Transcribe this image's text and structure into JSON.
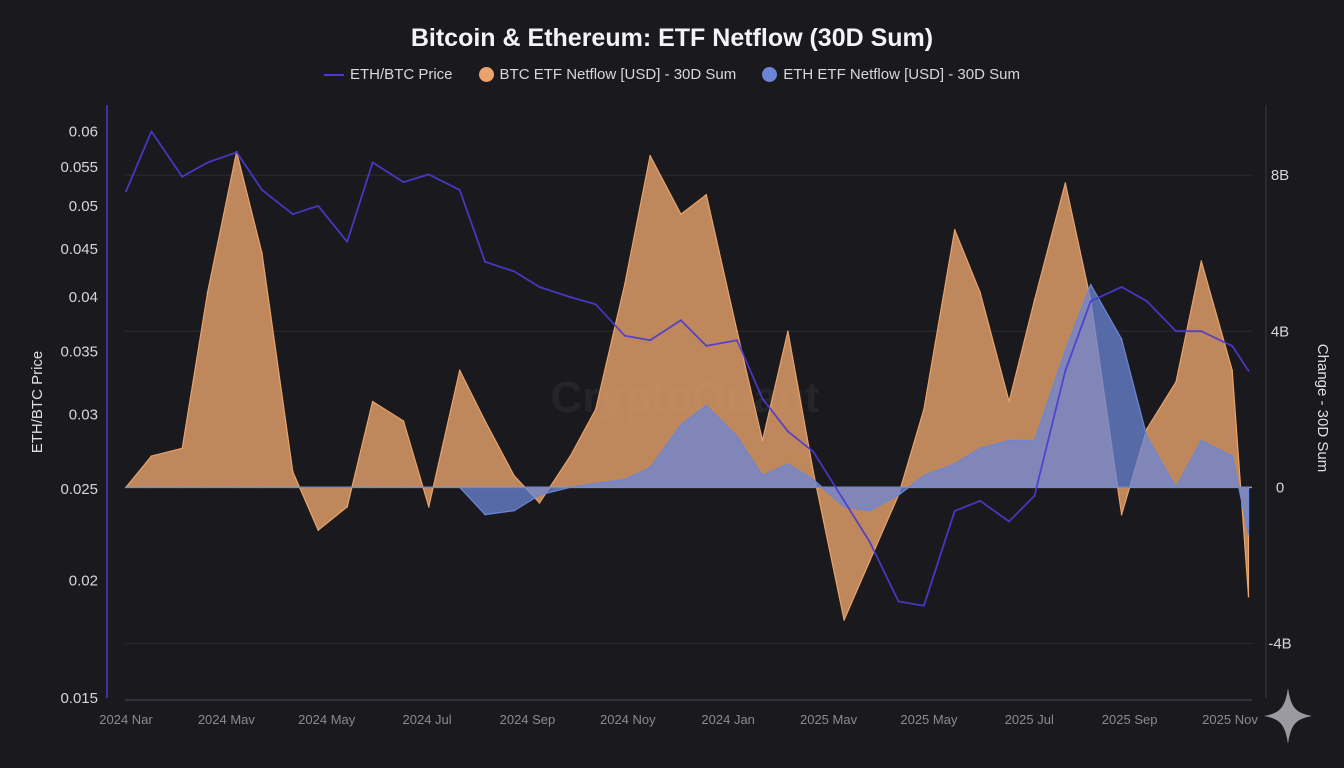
{
  "title": "Bitcoin & Ethereum: ETF Netflow (30D Sum)",
  "legend": [
    {
      "label": "ETH/BTC Price",
      "color": "#4b3bd0",
      "shape": "line"
    },
    {
      "label": "BTC ETF Netflow [USD] - 30D Sum",
      "color": "#e9a36b",
      "shape": "circle"
    },
    {
      "label": "ETH ETF Netflow [USD] - 30D Sum",
      "color": "#6b86d6",
      "shape": "circle"
    }
  ],
  "watermark": "CryptoQuant",
  "icons": {
    "corner": "sparkle-icon"
  },
  "chart_data": {
    "type": "area",
    "title": "Bitcoin & Ethereum: ETF Netflow (30D Sum)",
    "x": [
      "2024-03-01",
      "2024-03-15",
      "2024-04-01",
      "2024-04-15",
      "2024-05-01",
      "2024-05-15",
      "2024-06-01",
      "2024-06-15",
      "2024-07-01",
      "2024-07-15",
      "2024-08-01",
      "2024-08-15",
      "2024-09-01",
      "2024-09-15",
      "2024-10-01",
      "2024-10-15",
      "2024-11-01",
      "2024-11-15",
      "2024-12-01",
      "2024-12-15",
      "2025-01-01",
      "2025-01-15",
      "2025-02-01",
      "2025-02-15",
      "2025-03-01",
      "2025-03-15",
      "2025-04-01",
      "2025-04-15",
      "2025-05-01",
      "2025-05-15",
      "2025-06-01",
      "2025-06-15",
      "2025-07-01",
      "2025-07-15",
      "2025-08-01",
      "2025-08-15",
      "2025-09-01",
      "2025-09-15",
      "2025-10-01",
      "2025-10-15",
      "2025-11-01",
      "2025-11-10"
    ],
    "x_ticks": [
      {
        "date": "2024-03-01",
        "label": "2024 Nar"
      },
      {
        "date": "2024-05-01",
        "label": "2024 Mav"
      },
      {
        "date": "2024-07-01",
        "label": "2024 May"
      },
      {
        "date": "2024-09-01",
        "label": "2024 Jul"
      },
      {
        "date": "2024-11-01",
        "label": "2024 Sep"
      },
      {
        "date": "2025-01-01",
        "label": "2024 Noy"
      },
      {
        "date": "2025-03-01",
        "label": "2024 Jan"
      },
      {
        "date": "2025-05-01",
        "label": "2025 Mav"
      },
      {
        "date": "2025-07-01",
        "label": "2025 May"
      },
      {
        "date": "2025-09-01",
        "label": "2025 Jul"
      },
      {
        "date": "2025-11-01",
        "label": "2025 Sep"
      },
      {
        "date": "2026-01-01",
        "label": "2025 Nov"
      }
    ],
    "series": [
      {
        "name": "ETH/BTC Price",
        "axis": "left",
        "kind": "line",
        "color": "#4b3bd0",
        "values": [
          0.0518,
          0.06,
          0.0537,
          0.0556,
          0.057,
          0.052,
          0.049,
          0.05,
          0.0458,
          0.0556,
          0.053,
          0.054,
          0.052,
          0.0436,
          0.0426,
          0.041,
          0.04,
          0.0393,
          0.0364,
          0.036,
          0.0378,
          0.0355,
          0.036,
          0.0312,
          0.0288,
          0.0274,
          0.0243,
          0.022,
          0.019,
          0.0188,
          0.0237,
          0.0243,
          0.0231,
          0.0246,
          0.0334,
          0.0396,
          0.041,
          0.0396,
          0.0368,
          0.0368,
          0.0355,
          0.0334
        ]
      },
      {
        "name": "BTC ETF Netflow [USD] - 30D Sum",
        "axis": "right",
        "kind": "area",
        "color": "#e9a36b",
        "unit": "B USD",
        "values": [
          0,
          0.8,
          1.0,
          5.0,
          8.6,
          6.0,
          0.4,
          -1.1,
          -0.5,
          2.2,
          1.7,
          -0.5,
          3.0,
          1.7,
          0.3,
          -0.4,
          0.8,
          2.0,
          5.2,
          8.5,
          7.0,
          7.5,
          4.0,
          1.2,
          4.0,
          0.4,
          -3.4,
          -1.9,
          -0.2,
          2.0,
          6.6,
          5.0,
          2.2,
          4.8,
          7.8,
          4.8,
          -0.7,
          1.5,
          2.7,
          5.8,
          3.0,
          -2.8
        ]
      },
      {
        "name": "ETH ETF Netflow [USD] - 30D Sum",
        "axis": "right",
        "kind": "area",
        "color": "#6b86d6",
        "unit": "B USD",
        "values": [
          0,
          0,
          0,
          0,
          0,
          0,
          0,
          0,
          0,
          0,
          0,
          0,
          0,
          -0.7,
          -0.6,
          -0.2,
          0,
          0.1,
          0.2,
          0.5,
          1.6,
          2.1,
          1.3,
          0.3,
          0.6,
          0.2,
          -0.5,
          -0.6,
          -0.2,
          0.3,
          0.6,
          1.0,
          1.2,
          1.2,
          3.5,
          5.2,
          3.8,
          1.3,
          0,
          1.2,
          0.8,
          -1.2
        ]
      }
    ],
    "y_left": {
      "label": "ETH/BTC Price",
      "scale": "log",
      "range": [
        0.015,
        0.064
      ],
      "ticks": [
        "0.06",
        "0.055",
        "0.05",
        "0.045",
        "0.04",
        "0.035",
        "0.03",
        "0.025",
        "0.02",
        "0.015"
      ]
    },
    "y_right": {
      "label": "Change - 30D Sum",
      "scale": "linear",
      "range": [
        -5.4,
        9.8
      ],
      "ticks": [
        {
          "v": 8,
          "label": "8B"
        },
        {
          "v": 4,
          "label": "4B"
        },
        {
          "v": 0,
          "label": "0"
        },
        {
          "v": -4,
          "label": "-4B"
        }
      ]
    },
    "grid": true,
    "legend_position": "top"
  }
}
